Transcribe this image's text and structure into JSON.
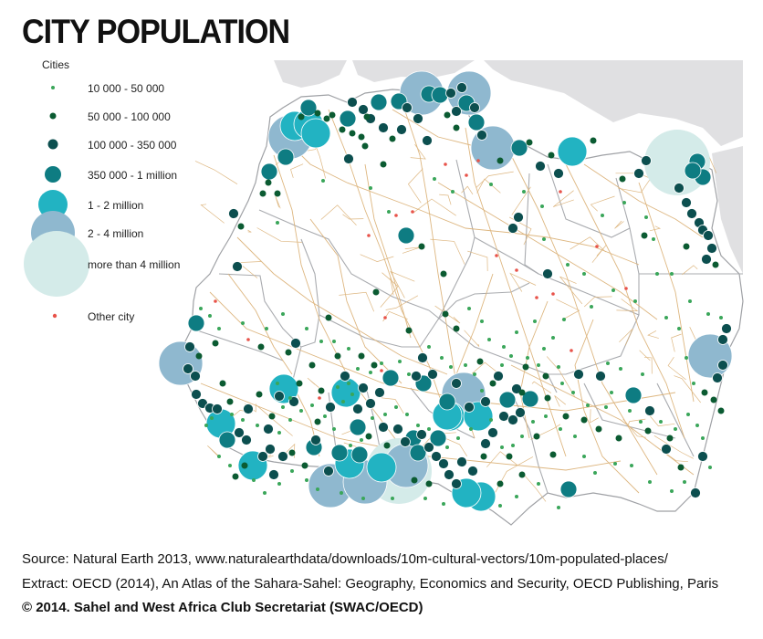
{
  "title": "CITY POPULATION",
  "legend": {
    "heading": "Cities",
    "items": [
      {
        "label": "10 000 - 50 000",
        "color": "#3aa65a"
      },
      {
        "label": "50 000 - 100 000",
        "color": "#0b5b32"
      },
      {
        "label": "100 000 - 350 000",
        "color": "#0c4f4f"
      },
      {
        "label": "350 000 - 1 million",
        "color": "#0e7c82"
      },
      {
        "label": "1 - 2 million",
        "color": "#22b3c2"
      },
      {
        "label": "2 - 4 million",
        "color": "#8fb8cf"
      },
      {
        "label": "more than 4 million",
        "color": "#d4ebe9"
      }
    ],
    "other_city": {
      "label": "Other city",
      "color": "#e8534a"
    }
  },
  "colors": {
    "land": "#ffffff",
    "outside_land": "#e0e0e2",
    "borders": "#a7a9ad",
    "roads": "#dcb37a"
  },
  "footer": {
    "source": "Source: Natural Earth 2013, www.naturalearthdata/downloads/10m-cultural-vectors/10m-populated-places/",
    "extract": "Extract: OECD (2014), An Atlas of the Sahara-Sahel: Geography, Economics  and Security, OECD Publishing, Paris",
    "copyright": "© 2014. Sahel and West Africa Club Secretariat (SWAC/OECD)"
  }
}
